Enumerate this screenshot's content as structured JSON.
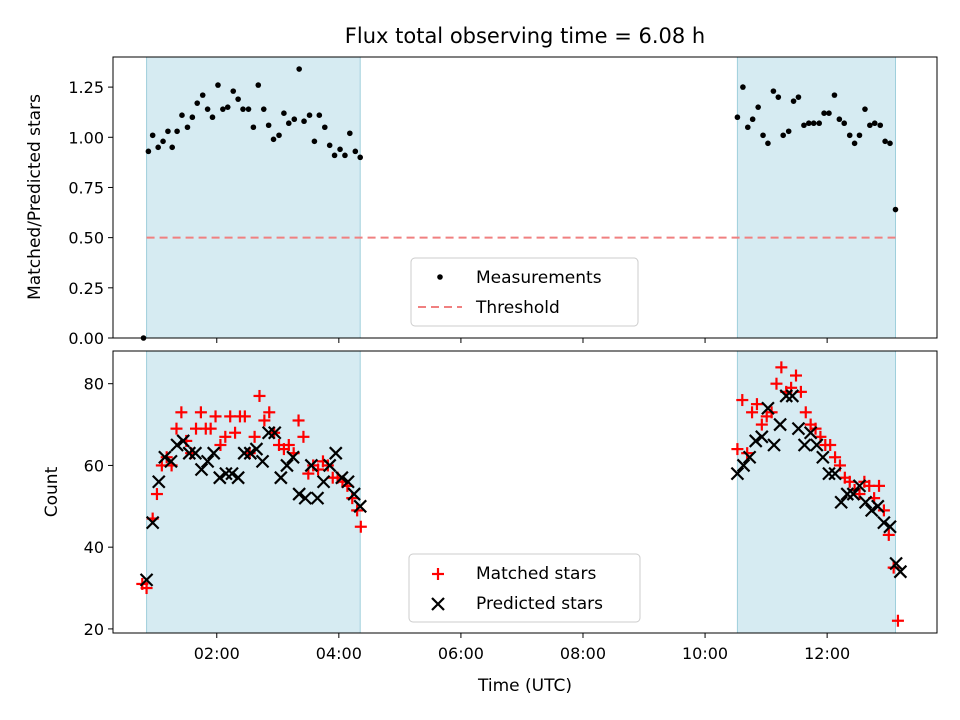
{
  "chart_data": [
    {
      "type": "scatter",
      "title": "Flux total observing time = 6.08 h",
      "xlabel": "",
      "ylabel": "Matched/Predicted stars",
      "ylim": [
        0,
        1.4
      ],
      "yticks": [
        0,
        0.25,
        0.5,
        0.75,
        1.0,
        1.25
      ],
      "ytick_labels": [
        "0.00",
        "0.25",
        "0.50",
        "0.75",
        "1.00",
        "1.25",
        ""
      ],
      "xlim": [
        0.3,
        13.8
      ],
      "observing_windows": [
        [
          0.85,
          4.35
        ],
        [
          10.53,
          13.12
        ]
      ],
      "threshold": {
        "value": 0.5,
        "x": [
          0.85,
          13.12
        ],
        "color": "#f08080"
      },
      "legend_position": "lower center",
      "series": [
        {
          "name": "Measurements",
          "marker": "dot",
          "color": "#000000",
          "points": [
            [
              0.8,
              0.0
            ],
            [
              0.88,
              0.93
            ],
            [
              0.95,
              1.01
            ],
            [
              1.04,
              0.95
            ],
            [
              1.12,
              0.98
            ],
            [
              1.2,
              1.03
            ],
            [
              1.27,
              0.95
            ],
            [
              1.35,
              1.03
            ],
            [
              1.43,
              1.11
            ],
            [
              1.52,
              1.05
            ],
            [
              1.6,
              1.1
            ],
            [
              1.68,
              1.17
            ],
            [
              1.77,
              1.21
            ],
            [
              1.85,
              1.14
            ],
            [
              1.93,
              1.1
            ],
            [
              2.02,
              1.26
            ],
            [
              2.1,
              1.14
            ],
            [
              2.18,
              1.15
            ],
            [
              2.27,
              1.23
            ],
            [
              2.35,
              1.19
            ],
            [
              2.43,
              1.14
            ],
            [
              2.52,
              1.14
            ],
            [
              2.6,
              1.05
            ],
            [
              2.68,
              1.26
            ],
            [
              2.77,
              1.14
            ],
            [
              2.85,
              1.06
            ],
            [
              2.93,
              0.99
            ],
            [
              3.02,
              1.01
            ],
            [
              3.1,
              1.12
            ],
            [
              3.18,
              1.07
            ],
            [
              3.27,
              1.09
            ],
            [
              3.35,
              1.34
            ],
            [
              3.43,
              1.08
            ],
            [
              3.52,
              1.11
            ],
            [
              3.6,
              0.98
            ],
            [
              3.68,
              1.11
            ],
            [
              3.77,
              1.05
            ],
            [
              3.85,
              0.96
            ],
            [
              3.93,
              0.91
            ],
            [
              4.02,
              0.94
            ],
            [
              4.1,
              0.91
            ],
            [
              4.18,
              1.02
            ],
            [
              4.27,
              0.93
            ],
            [
              4.35,
              0.9
            ],
            [
              10.53,
              1.1
            ],
            [
              10.62,
              1.25
            ],
            [
              10.7,
              1.05
            ],
            [
              10.78,
              1.09
            ],
            [
              10.87,
              1.15
            ],
            [
              10.95,
              1.01
            ],
            [
              11.03,
              0.97
            ],
            [
              11.12,
              1.23
            ],
            [
              11.2,
              1.2
            ],
            [
              11.28,
              1.01
            ],
            [
              11.37,
              1.03
            ],
            [
              11.45,
              1.18
            ],
            [
              11.53,
              1.2
            ],
            [
              11.62,
              1.06
            ],
            [
              11.7,
              1.07
            ],
            [
              11.78,
              1.07
            ],
            [
              11.87,
              1.07
            ],
            [
              11.95,
              1.12
            ],
            [
              12.03,
              1.12
            ],
            [
              12.12,
              1.21
            ],
            [
              12.2,
              1.09
            ],
            [
              12.28,
              1.07
            ],
            [
              12.37,
              1.01
            ],
            [
              12.45,
              0.97
            ],
            [
              12.53,
              1.01
            ],
            [
              12.62,
              1.14
            ],
            [
              12.7,
              1.06
            ],
            [
              12.78,
              1.07
            ],
            [
              12.87,
              1.06
            ],
            [
              12.95,
              0.98
            ],
            [
              13.03,
              0.97
            ],
            [
              13.12,
              0.64
            ]
          ]
        }
      ],
      "legend": [
        "Measurements",
        "Threshold"
      ]
    },
    {
      "type": "scatter",
      "title": "",
      "xlabel": "Time (UTC)",
      "ylabel": "Count",
      "ylim": [
        19,
        88
      ],
      "yticks": [
        20,
        40,
        60,
        80
      ],
      "ytick_labels": [
        "20",
        "40",
        "60",
        "80"
      ],
      "xlim": [
        0.3,
        13.8
      ],
      "xticks": [
        2,
        4,
        6,
        8,
        10,
        12
      ],
      "xtick_labels": [
        "02:00",
        "04:00",
        "06:00",
        "08:00",
        "10:00",
        "12:00"
      ],
      "observing_windows": [
        [
          0.85,
          4.35
        ],
        [
          10.53,
          13.12
        ]
      ],
      "legend_position": "lower center",
      "series": [
        {
          "name": "Matched stars",
          "marker": "plus",
          "color": "#ff0000",
          "points": [
            [
              0.78,
              31
            ],
            [
              0.85,
              30
            ],
            [
              0.95,
              47
            ],
            [
              1.02,
              53
            ],
            [
              1.1,
              60
            ],
            [
              1.18,
              62
            ],
            [
              1.26,
              60
            ],
            [
              1.34,
              69
            ],
            [
              1.42,
              73
            ],
            [
              1.5,
              66
            ],
            [
              1.58,
              63
            ],
            [
              1.66,
              69
            ],
            [
              1.74,
              73
            ],
            [
              1.82,
              69
            ],
            [
              1.9,
              69
            ],
            [
              1.98,
              72
            ],
            [
              2.06,
              65
            ],
            [
              2.14,
              67
            ],
            [
              2.22,
              72
            ],
            [
              2.3,
              68
            ],
            [
              2.38,
              72
            ],
            [
              2.46,
              72
            ],
            [
              2.54,
              63
            ],
            [
              2.62,
              67
            ],
            [
              2.7,
              77
            ],
            [
              2.78,
              71
            ],
            [
              2.86,
              73
            ],
            [
              2.94,
              68
            ],
            [
              3.02,
              65
            ],
            [
              3.1,
              64
            ],
            [
              3.18,
              65
            ],
            [
              3.26,
              63
            ],
            [
              3.34,
              71
            ],
            [
              3.42,
              67
            ],
            [
              3.5,
              58
            ],
            [
              3.58,
              60
            ],
            [
              3.66,
              59
            ],
            [
              3.74,
              61
            ],
            [
              3.82,
              60
            ],
            [
              3.9,
              57
            ],
            [
              3.98,
              57
            ],
            [
              4.06,
              56
            ],
            [
              4.14,
              55
            ],
            [
              4.22,
              52
            ],
            [
              4.3,
              49
            ],
            [
              4.36,
              45
            ],
            [
              10.53,
              64
            ],
            [
              10.61,
              76
            ],
            [
              10.69,
              63
            ],
            [
              10.77,
              73
            ],
            [
              10.85,
              75
            ],
            [
              10.93,
              70
            ],
            [
              11.01,
              72
            ],
            [
              11.09,
              73
            ],
            [
              11.17,
              80
            ],
            [
              11.25,
              84
            ],
            [
              11.33,
              78
            ],
            [
              11.41,
              79
            ],
            [
              11.49,
              82
            ],
            [
              11.57,
              78
            ],
            [
              11.65,
              73
            ],
            [
              11.73,
              70
            ],
            [
              11.81,
              69
            ],
            [
              11.89,
              67
            ],
            [
              11.97,
              65
            ],
            [
              12.05,
              65
            ],
            [
              12.13,
              62
            ],
            [
              12.21,
              60
            ],
            [
              12.29,
              57
            ],
            [
              12.37,
              56
            ],
            [
              12.45,
              54
            ],
            [
              12.53,
              53
            ],
            [
              12.61,
              56
            ],
            [
              12.69,
              55
            ],
            [
              12.77,
              52
            ],
            [
              12.85,
              55
            ],
            [
              12.93,
              49
            ],
            [
              13.01,
              43
            ],
            [
              13.09,
              35
            ],
            [
              13.16,
              22
            ]
          ]
        },
        {
          "name": "Predicted stars",
          "marker": "x",
          "color": "#000000",
          "points": [
            [
              0.85,
              32
            ],
            [
              0.95,
              46
            ],
            [
              1.05,
              56
            ],
            [
              1.15,
              62
            ],
            [
              1.25,
              61
            ],
            [
              1.35,
              65
            ],
            [
              1.45,
              66
            ],
            [
              1.55,
              63
            ],
            [
              1.65,
              63
            ],
            [
              1.75,
              59
            ],
            [
              1.85,
              61
            ],
            [
              1.95,
              63
            ],
            [
              2.05,
              57
            ],
            [
              2.15,
              58
            ],
            [
              2.25,
              58
            ],
            [
              2.35,
              57
            ],
            [
              2.45,
              63
            ],
            [
              2.55,
              63
            ],
            [
              2.65,
              64
            ],
            [
              2.75,
              61
            ],
            [
              2.85,
              68
            ],
            [
              2.95,
              68
            ],
            [
              3.05,
              57
            ],
            [
              3.15,
              60
            ],
            [
              3.25,
              62
            ],
            [
              3.35,
              53
            ],
            [
              3.45,
              52
            ],
            [
              3.55,
              60
            ],
            [
              3.65,
              52
            ],
            [
              3.75,
              56
            ],
            [
              3.85,
              60
            ],
            [
              3.95,
              63
            ],
            [
              4.05,
              57
            ],
            [
              4.15,
              56
            ],
            [
              4.25,
              53
            ],
            [
              4.35,
              50
            ],
            [
              10.53,
              58
            ],
            [
              10.63,
              60
            ],
            [
              10.73,
              62
            ],
            [
              10.83,
              66
            ],
            [
              10.93,
              67
            ],
            [
              11.03,
              74
            ],
            [
              11.13,
              65
            ],
            [
              11.23,
              70
            ],
            [
              11.33,
              77
            ],
            [
              11.43,
              77
            ],
            [
              11.53,
              69
            ],
            [
              11.63,
              65
            ],
            [
              11.73,
              68
            ],
            [
              11.83,
              65
            ],
            [
              11.93,
              62
            ],
            [
              12.03,
              58
            ],
            [
              12.13,
              58
            ],
            [
              12.23,
              51
            ],
            [
              12.33,
              53
            ],
            [
              12.43,
              53
            ],
            [
              12.53,
              55
            ],
            [
              12.63,
              51
            ],
            [
              12.73,
              49
            ],
            [
              12.83,
              50
            ],
            [
              12.93,
              46
            ],
            [
              13.03,
              45
            ],
            [
              13.13,
              36
            ],
            [
              13.2,
              34
            ]
          ]
        }
      ],
      "legend": [
        "Matched stars",
        "Predicted stars"
      ]
    }
  ]
}
